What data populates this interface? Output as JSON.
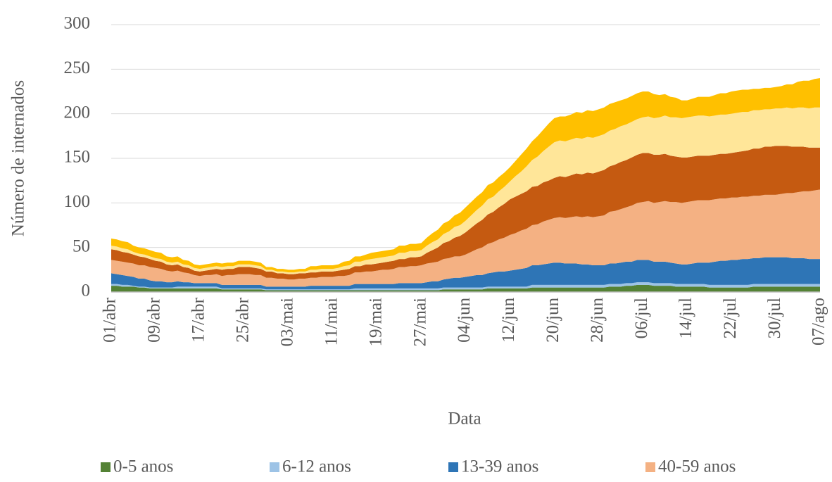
{
  "chart_data": {
    "type": "stacked-area",
    "x_label": "Data",
    "y_label": "Número de internados",
    "ylim": [
      0,
      300
    ],
    "yticks": [
      0,
      50,
      100,
      150,
      200,
      250,
      300
    ],
    "grid": true,
    "legend": "bottom",
    "categories": [
      "01/abr",
      null,
      null,
      null,
      null,
      null,
      null,
      null,
      "09/abr",
      null,
      null,
      null,
      null,
      null,
      null,
      null,
      "17/abr",
      null,
      null,
      null,
      null,
      null,
      null,
      null,
      "25/abr",
      null,
      null,
      null,
      null,
      null,
      null,
      null,
      "03/mai",
      null,
      null,
      null,
      null,
      null,
      null,
      null,
      "11/mai",
      null,
      null,
      null,
      null,
      null,
      null,
      null,
      "19/mai",
      null,
      null,
      null,
      null,
      null,
      null,
      null,
      "27/mai",
      null,
      null,
      null,
      null,
      null,
      null,
      null,
      "04/jun",
      null,
      null,
      null,
      null,
      null,
      null,
      null,
      "12/jun",
      null,
      null,
      null,
      null,
      null,
      null,
      null,
      "20/jun",
      null,
      null,
      null,
      null,
      null,
      null,
      null,
      "28/jun",
      null,
      null,
      null,
      null,
      null,
      null,
      null,
      "06/jul",
      null,
      null,
      null,
      null,
      null,
      null,
      null,
      "14/jul",
      null,
      null,
      null,
      null,
      null,
      null,
      null,
      "22/jul",
      null,
      null,
      null,
      null,
      null,
      null,
      null,
      "30/jul",
      null,
      null,
      null,
      null,
      null,
      null,
      null,
      "07/ago"
    ],
    "series": [
      {
        "name": "0-5 anos",
        "color": "#548235",
        "values": [
          7,
          7,
          6,
          6,
          6,
          5,
          5,
          4,
          4,
          4,
          4,
          4,
          4,
          4,
          4,
          4,
          4,
          4,
          4,
          4,
          3,
          3,
          3,
          3,
          3,
          3,
          3,
          3,
          2,
          2,
          2,
          2,
          2,
          2,
          2,
          2,
          2,
          2,
          2,
          2,
          2,
          2,
          2,
          2,
          2,
          2,
          2,
          2,
          2,
          2,
          2,
          2,
          2,
          2,
          2,
          2,
          2,
          2,
          2,
          2,
          3,
          3,
          3,
          3,
          3,
          3,
          3,
          3,
          4,
          4,
          4,
          4,
          4,
          4,
          4,
          4,
          5,
          5,
          5,
          5,
          5,
          5,
          5,
          5,
          5,
          5,
          5,
          5,
          5,
          5,
          6,
          6,
          6,
          7,
          7,
          8,
          8,
          8,
          7,
          7,
          7,
          7,
          6,
          6,
          6,
          6,
          6,
          6,
          5,
          5,
          5,
          5,
          5,
          5,
          5,
          5,
          6,
          6,
          6,
          6,
          6,
          6,
          6,
          6,
          6,
          6,
          6,
          6,
          6
        ]
      },
      {
        "name": "6-12 anos",
        "color": "#9dc3e6",
        "values": [
          2,
          2,
          2,
          2,
          1,
          1,
          1,
          1,
          1,
          1,
          1,
          1,
          2,
          2,
          2,
          2,
          2,
          2,
          2,
          2,
          1,
          1,
          1,
          1,
          1,
          1,
          1,
          1,
          1,
          1,
          1,
          1,
          1,
          1,
          1,
          1,
          1,
          1,
          1,
          1,
          1,
          1,
          1,
          1,
          2,
          2,
          2,
          2,
          2,
          2,
          2,
          2,
          2,
          2,
          2,
          2,
          2,
          2,
          2,
          2,
          2,
          2,
          2,
          2,
          2,
          2,
          2,
          2,
          2,
          2,
          2,
          2,
          2,
          2,
          2,
          2,
          3,
          3,
          3,
          3,
          3,
          3,
          3,
          3,
          3,
          3,
          3,
          3,
          3,
          3,
          3,
          3,
          3,
          3,
          3,
          3,
          3,
          3,
          3,
          3,
          3,
          3,
          3,
          3,
          3,
          3,
          3,
          3,
          3,
          3,
          3,
          3,
          3,
          3,
          3,
          3,
          3,
          3,
          3,
          3,
          3,
          3,
          3,
          3,
          3,
          3,
          3,
          3,
          3
        ]
      },
      {
        "name": "13-39 anos",
        "color": "#2e75b6",
        "values": [
          12,
          11,
          11,
          10,
          10,
          9,
          9,
          8,
          7,
          7,
          6,
          6,
          6,
          5,
          5,
          4,
          4,
          4,
          4,
          4,
          4,
          4,
          4,
          4,
          4,
          4,
          4,
          4,
          3,
          3,
          3,
          3,
          3,
          3,
          3,
          3,
          4,
          4,
          4,
          4,
          4,
          4,
          4,
          4,
          5,
          5,
          5,
          5,
          5,
          5,
          5,
          5,
          6,
          6,
          6,
          6,
          6,
          7,
          8,
          8,
          9,
          10,
          11,
          11,
          12,
          13,
          14,
          14,
          15,
          16,
          17,
          17,
          18,
          19,
          20,
          21,
          22,
          22,
          23,
          24,
          25,
          25,
          24,
          24,
          24,
          23,
          23,
          22,
          22,
          22,
          23,
          23,
          24,
          24,
          24,
          25,
          25,
          25,
          24,
          24,
          24,
          23,
          23,
          22,
          22,
          23,
          24,
          24,
          25,
          26,
          27,
          27,
          28,
          28,
          29,
          29,
          29,
          29,
          30,
          30,
          30,
          30,
          30,
          29,
          29,
          29,
          28,
          28,
          28
        ]
      },
      {
        "name": "40-59 anos",
        "color": "#f4b183",
        "values": [
          15,
          15,
          15,
          15,
          15,
          15,
          15,
          15,
          15,
          14,
          13,
          12,
          12,
          11,
          10,
          9,
          8,
          9,
          9,
          10,
          10,
          11,
          11,
          12,
          12,
          12,
          11,
          11,
          10,
          10,
          9,
          9,
          8,
          8,
          9,
          9,
          9,
          9,
          10,
          10,
          10,
          11,
          11,
          12,
          13,
          13,
          14,
          14,
          15,
          16,
          16,
          17,
          18,
          18,
          19,
          19,
          20,
          21,
          21,
          22,
          23,
          23,
          24,
          24,
          25,
          27,
          29,
          31,
          33,
          34,
          36,
          38,
          40,
          41,
          43,
          44,
          45,
          46,
          48,
          49,
          50,
          51,
          51,
          52,
          53,
          53,
          54,
          54,
          55,
          56,
          58,
          59,
          60,
          61,
          63,
          64,
          65,
          66,
          66,
          67,
          68,
          68,
          69,
          69,
          70,
          70,
          70,
          70,
          70,
          70,
          70,
          70,
          70,
          70,
          70,
          70,
          70,
          70,
          70,
          70,
          70,
          71,
          72,
          73,
          74,
          75,
          76,
          77,
          78
        ]
      },
      {
        "color": "#c55a11",
        "values": [
          12,
          12,
          11,
          11,
          10,
          10,
          9,
          9,
          8,
          8,
          7,
          7,
          7,
          6,
          6,
          5,
          5,
          5,
          6,
          6,
          7,
          7,
          7,
          8,
          8,
          8,
          8,
          7,
          7,
          7,
          6,
          6,
          6,
          6,
          6,
          6,
          6,
          6,
          6,
          6,
          6,
          6,
          7,
          7,
          7,
          7,
          8,
          8,
          8,
          8,
          9,
          9,
          9,
          9,
          10,
          10,
          10,
          12,
          14,
          16,
          18,
          19,
          21,
          23,
          25,
          27,
          29,
          31,
          33,
          34,
          36,
          38,
          40,
          41,
          41,
          42,
          43,
          43,
          44,
          44,
          45,
          46,
          46,
          47,
          48,
          48,
          49,
          49,
          50,
          51,
          51,
          52,
          53,
          53,
          54,
          54,
          55,
          54,
          54,
          53,
          53,
          52,
          51,
          51,
          50,
          50,
          50,
          50,
          50,
          50,
          50,
          50,
          50,
          51,
          51,
          52,
          53,
          53,
          54,
          54,
          55,
          54,
          53,
          52,
          51,
          50,
          49,
          48,
          47
        ]
      },
      {
        "color": "#ffe699",
        "values": [
          4,
          4,
          4,
          4,
          3,
          3,
          3,
          3,
          3,
          3,
          3,
          3,
          3,
          3,
          3,
          3,
          3,
          3,
          3,
          3,
          3,
          3,
          3,
          3,
          3,
          3,
          3,
          3,
          2,
          2,
          2,
          2,
          2,
          2,
          2,
          2,
          3,
          3,
          3,
          3,
          3,
          3,
          4,
          4,
          5,
          5,
          5,
          6,
          6,
          6,
          6,
          6,
          7,
          7,
          7,
          7,
          7,
          8,
          9,
          9,
          10,
          11,
          12,
          12,
          13,
          14,
          15,
          16,
          17,
          17,
          18,
          19,
          20,
          23,
          25,
          28,
          30,
          33,
          35,
          38,
          40,
          40,
          40,
          40,
          40,
          40,
          40,
          40,
          40,
          40,
          40,
          40,
          40,
          40,
          40,
          40,
          40,
          41,
          41,
          42,
          43,
          43,
          44,
          44,
          45,
          45,
          45,
          45,
          44,
          44,
          44,
          44,
          44,
          44,
          44,
          43,
          43,
          43,
          42,
          42,
          42,
          42,
          43,
          43,
          44,
          44,
          44,
          45,
          45
        ]
      },
      {
        "color": "#ffc000",
        "values": [
          8,
          8,
          8,
          8,
          7,
          7,
          7,
          7,
          7,
          7,
          6,
          6,
          6,
          5,
          5,
          4,
          4,
          4,
          4,
          4,
          4,
          4,
          4,
          4,
          4,
          4,
          4,
          4,
          3,
          3,
          3,
          3,
          3,
          3,
          3,
          3,
          4,
          4,
          4,
          4,
          4,
          4,
          5,
          5,
          6,
          6,
          6,
          7,
          7,
          7,
          7,
          7,
          8,
          8,
          8,
          8,
          8,
          9,
          10,
          11,
          12,
          12,
          13,
          14,
          15,
          15,
          15,
          15,
          16,
          16,
          16,
          16,
          16,
          17,
          19,
          20,
          21,
          23,
          24,
          26,
          27,
          27,
          28,
          28,
          29,
          29,
          30,
          30,
          30,
          30,
          30,
          30,
          29,
          29,
          29,
          29,
          29,
          28,
          27,
          25,
          24,
          23,
          22,
          20,
          19,
          20,
          21,
          21,
          22,
          23,
          24,
          24,
          25,
          25,
          25,
          25,
          24,
          24,
          24,
          24,
          24,
          25,
          26,
          27,
          29,
          30,
          31,
          32,
          33
        ]
      }
    ]
  }
}
